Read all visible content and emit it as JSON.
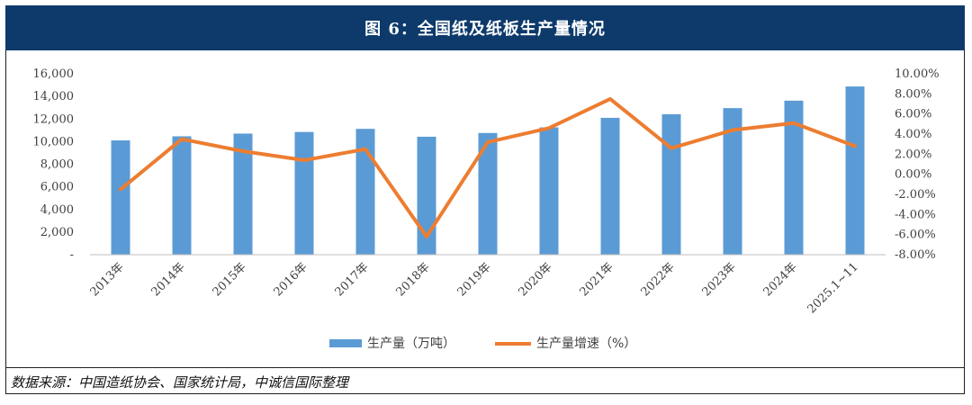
{
  "header": {
    "title": "图 6：全国纸及纸板生产量情况"
  },
  "footer": {
    "source": "数据来源：中国造纸协会、国家统计局，中诚信国际整理"
  },
  "colors": {
    "bar": "#5b9bd5",
    "line": "#ed7d31",
    "header_bg": "#0d3a6b"
  },
  "chart_data": {
    "type": "bar",
    "categories": [
      "2013年",
      "2014年",
      "2015年",
      "2016年",
      "2017年",
      "2018年",
      "2019年",
      "2020年",
      "2021年",
      "2022年",
      "2023年",
      "2024年",
      "2025.1~11"
    ],
    "series": [
      {
        "name": "生产量（万吨）",
        "type": "bar",
        "axis": "left",
        "values": [
          10110,
          10470,
          10710,
          10855,
          11130,
          10435,
          10765,
          11260,
          12105,
          12425,
          12965,
          13625,
          14880
        ]
      },
      {
        "name": "生产量增速（%）",
        "type": "line",
        "axis": "right",
        "values": [
          -1.5,
          3.5,
          2.3,
          1.4,
          2.5,
          -6.2,
          3.2,
          4.6,
          7.5,
          2.6,
          4.4,
          5.1,
          2.8
        ]
      }
    ],
    "left_axis": {
      "ylim": [
        0,
        16000
      ],
      "tick_labels": [
        "-",
        "2,000",
        "4,000",
        "6,000",
        "8,000",
        "10,000",
        "12,000",
        "14,000",
        "16,000"
      ]
    },
    "right_axis": {
      "ylim": [
        -8,
        10
      ],
      "tick_labels": [
        "-8.00%",
        "-6.00%",
        "-4.00%",
        "-2.00%",
        "0.00%",
        "2.00%",
        "4.00%",
        "6.00%",
        "8.00%",
        "10.00%"
      ]
    },
    "legend_position": "bottom",
    "grid": false
  }
}
